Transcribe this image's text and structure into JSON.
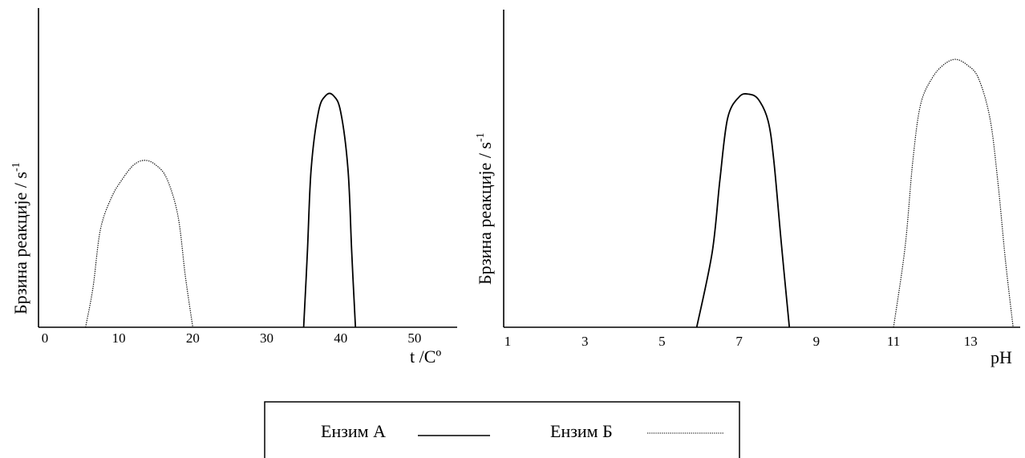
{
  "chart_data": [
    {
      "type": "line",
      "xlabel": "t /Cº",
      "ylabel": "Брзина реакције / s",
      "ylabel_superscript": "-1",
      "x_ticks": [
        "0",
        "10",
        "20",
        "30",
        "40",
        "50"
      ],
      "xlim": [
        0,
        55
      ],
      "ylim": [
        0,
        1
      ],
      "grid": false,
      "series": [
        {
          "name": "Ензим А",
          "style": "solid",
          "points": [
            [
              35,
              0
            ],
            [
              35.5,
              0.32
            ],
            [
              36,
              0.68
            ],
            [
              37,
              0.93
            ],
            [
              38,
              1.0
            ],
            [
              39,
              1.0
            ],
            [
              40,
              0.93
            ],
            [
              41,
              0.68
            ],
            [
              41.5,
              0.32
            ],
            [
              42,
              0
            ]
          ]
        },
        {
          "name": "Ензим Б",
          "style": "dotted",
          "points": [
            [
              5.5,
              0
            ],
            [
              6.5,
              0.17
            ],
            [
              7.5,
              0.42
            ],
            [
              9,
              0.56
            ],
            [
              10.5,
              0.64
            ],
            [
              12,
              0.7
            ],
            [
              13.5,
              0.72
            ],
            [
              15,
              0.7
            ],
            [
              16.5,
              0.64
            ],
            [
              18,
              0.48
            ],
            [
              19,
              0.22
            ],
            [
              20,
              0
            ]
          ]
        }
      ]
    },
    {
      "type": "line",
      "xlabel": "pH",
      "ylabel": "Брзина реакције / s",
      "ylabel_superscript": "-1",
      "x_ticks": [
        "1",
        "3",
        "5",
        "7",
        "9",
        "11",
        "13"
      ],
      "xlim": [
        1,
        14.2
      ],
      "ylim": [
        0,
        1
      ],
      "grid": false,
      "series": [
        {
          "name": "Ензим А",
          "style": "solid",
          "points": [
            [
              5.9,
              0
            ],
            [
              6.3,
              0.28
            ],
            [
              6.5,
              0.55
            ],
            [
              6.7,
              0.78
            ],
            [
              7.0,
              0.86
            ],
            [
              7.25,
              0.87
            ],
            [
              7.5,
              0.85
            ],
            [
              7.75,
              0.77
            ],
            [
              7.9,
              0.62
            ],
            [
              8.1,
              0.3
            ],
            [
              8.3,
              0
            ]
          ]
        },
        {
          "name": "Ензим Б",
          "style": "dotted",
          "points": [
            [
              11.0,
              0
            ],
            [
              11.3,
              0.3
            ],
            [
              11.5,
              0.62
            ],
            [
              11.7,
              0.83
            ],
            [
              12.0,
              0.93
            ],
            [
              12.3,
              0.98
            ],
            [
              12.6,
              1.0
            ],
            [
              12.9,
              0.98
            ],
            [
              13.2,
              0.93
            ],
            [
              13.5,
              0.78
            ],
            [
              13.7,
              0.55
            ],
            [
              13.9,
              0.25
            ],
            [
              14.1,
              0
            ]
          ]
        }
      ]
    }
  ],
  "legend": {
    "items": [
      {
        "label": "Ензим А",
        "style": "solid"
      },
      {
        "label": "Ензим Б",
        "style": "dotted"
      }
    ]
  }
}
